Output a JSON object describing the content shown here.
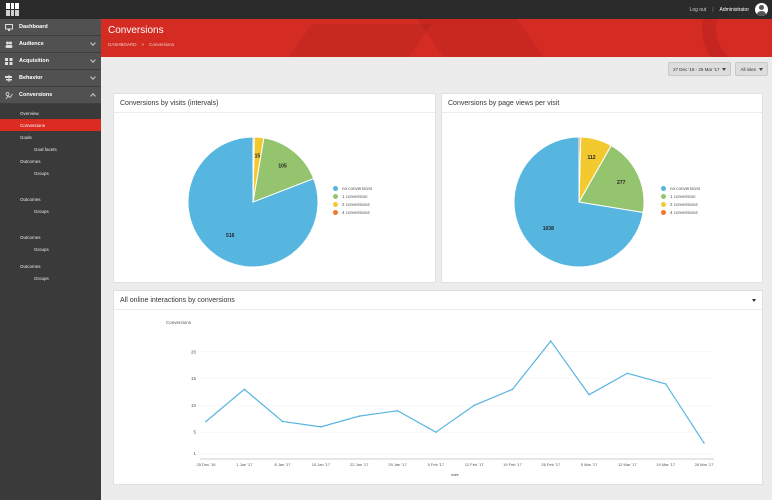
{
  "topbar": {
    "logout_label": "Log out",
    "separator": "|",
    "user_name": "Administrator"
  },
  "sidebar": {
    "groups": [
      {
        "label": "Dashboard",
        "icon": "monitor-icon"
      },
      {
        "label": "Audience",
        "icon": "people-icon"
      },
      {
        "label": "Acquisition",
        "icon": "grid-icon"
      },
      {
        "label": "Behavior",
        "icon": "signpost-icon"
      },
      {
        "label": "Conversions",
        "icon": "conversions-icon"
      }
    ],
    "items": [
      {
        "label": "Overview"
      },
      {
        "label": "Conversions"
      },
      {
        "label": "Goals"
      },
      {
        "label": "Goal facets"
      },
      {
        "label": "Outcomes"
      },
      {
        "label": "Groups"
      },
      {
        "label": "Outcomes"
      },
      {
        "label": "Groups"
      },
      {
        "label": "Outcomes"
      },
      {
        "label": "Groups"
      },
      {
        "label": "Outcomes"
      },
      {
        "label": "Groups"
      }
    ]
  },
  "header": {
    "title": "Conversions",
    "breadcrumb": [
      "DASHBOARD",
      ">",
      "Conversions"
    ]
  },
  "controls": {
    "date_range": "27 Dec '16 - 26 Mar '17",
    "site_filter": "All sites"
  },
  "colors": {
    "accent": "#d42b23",
    "no_conversions": "#56b6e0",
    "one_conversion": "#95c46e",
    "two_conversions": "#f2ca30",
    "four_conversions": "#f0782d"
  },
  "charts": {
    "visits_title": "Conversions by visits (intervals)",
    "pageviews_title": "Conversions by page views per visit",
    "interactions_title": "All online interactions by conversions",
    "legend": [
      "no conversions",
      "1 conversion",
      "2 conversions",
      "4 conversions"
    ]
  },
  "chart_data": [
    {
      "type": "pie",
      "title": "Conversions by visits (intervals)",
      "labels": [
        "no conversions",
        "1 conversion",
        "2 conversions",
        "4 conversions"
      ],
      "values": [
        516,
        105,
        15,
        2
      ],
      "data_labels": [
        "516",
        "105",
        "15",
        ""
      ]
    },
    {
      "type": "pie",
      "title": "Conversions by page views per visit",
      "labels": [
        "no conversions",
        "1 conversion",
        "2 conversions",
        "4 conversions"
      ],
      "values": [
        1038,
        277,
        112,
        6
      ],
      "data_labels": [
        "1038",
        "277",
        "112",
        ""
      ]
    },
    {
      "type": "line",
      "title": "All online interactions by conversions",
      "ylabel": "Conversions",
      "xlabel": "date",
      "categories": [
        "25 Dec '16",
        "1 Jan '17",
        "8 Jan '17",
        "15 Jan '17",
        "22 Jan '17",
        "29 Jan '17",
        "5 Feb '17",
        "12 Feb '17",
        "19 Feb '17",
        "26 Feb '17",
        "5 Mar '17",
        "12 Mar '17",
        "19 Mar '17",
        "26 Mar '17"
      ],
      "ylim": [
        0,
        25
      ],
      "yticks": [
        "1",
        "5",
        "10",
        "15",
        "20"
      ],
      "series": [
        {
          "values": [
            7,
            13,
            7,
            6,
            8,
            9,
            5,
            10,
            13,
            22,
            12,
            16,
            14,
            3
          ]
        }
      ]
    }
  ]
}
